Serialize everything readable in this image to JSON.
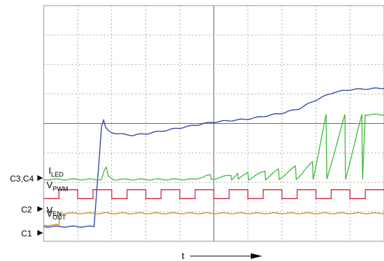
{
  "chart_data": {
    "type": "line",
    "x_axis_label": "t",
    "colors": {
      "vout": "#2b3fa6",
      "iled": "#3dbb3a",
      "vpwm": "#d4263b",
      "ven": "#d28a1e",
      "grid": "#9a9a9a"
    },
    "traces": [
      {
        "key": "vout",
        "label_main": "V",
        "label_sub": "OUT",
        "x": [
          0,
          0.86,
          1.48,
          1.7,
          1.76,
          1.82,
          1.9,
          2.0,
          2.2,
          2.6,
          3.0,
          3.5,
          4.0,
          4.5,
          5.0,
          5.5,
          6.0,
          6.5,
          7.0,
          7.5,
          8.0,
          8.5,
          9.0,
          10.0
        ],
        "y": [
          0.5,
          0.5,
          0.5,
          3.9,
          4.1,
          3.85,
          3.75,
          3.7,
          3.65,
          3.6,
          3.65,
          3.75,
          3.85,
          3.95,
          4.05,
          4.1,
          4.15,
          4.25,
          4.35,
          4.5,
          4.8,
          5.05,
          5.15,
          5.2
        ]
      },
      {
        "key": "iled",
        "label_main": "I",
        "label_sub": "LED",
        "x": [
          0,
          1.7,
          1.78,
          1.84,
          1.9,
          2.05,
          4.4,
          4.9,
          4.92,
          5.5,
          5.52,
          5.7,
          5.72,
          6.0,
          6.02,
          6.5,
          6.52,
          6.9,
          6.92,
          7.4,
          7.42,
          7.9,
          7.92,
          8.3,
          8.32,
          8.85,
          8.87,
          9.35,
          9.37,
          9.45,
          9.47,
          10.0
        ],
        "y": [
          2.1,
          2.1,
          2.4,
          2.5,
          2.2,
          2.1,
          2.1,
          2.25,
          2.1,
          2.25,
          2.1,
          2.3,
          2.1,
          2.35,
          2.1,
          2.4,
          2.1,
          2.45,
          2.1,
          2.55,
          2.1,
          2.7,
          2.1,
          4.3,
          2.1,
          4.3,
          2.1,
          4.3,
          2.1,
          4.3,
          4.3,
          4.3
        ]
      },
      {
        "key": "vpwm",
        "label_main": "V",
        "label_sub": "PWM",
        "period": 1.0,
        "duty": 0.55,
        "low": 1.45,
        "high": 1.75
      },
      {
        "key": "ven",
        "label_main": "V",
        "label_sub": "EN",
        "x": [
          0,
          0.45,
          0.47,
          10.0
        ],
        "y": [
          0.55,
          0.55,
          0.95,
          0.95
        ]
      }
    ],
    "channel_markers": [
      "C3,C4",
      "C2",
      "C1"
    ]
  }
}
